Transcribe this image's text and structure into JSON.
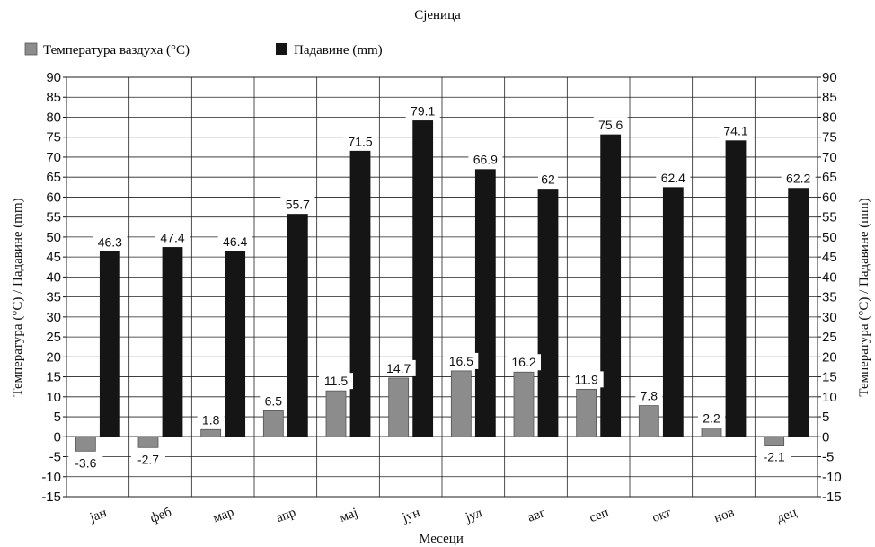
{
  "chart_data": {
    "type": "bar",
    "title": "Сјеница",
    "xlabel": "Месеци",
    "ylabel": "Температура (°C) / Падавине (mm)",
    "ylabel_right": "Температура (°C) / Падавине (mm)",
    "categories": [
      "јан",
      "феб",
      "мар",
      "апр",
      "мај",
      "јун",
      "јул",
      "авг",
      "сеп",
      "окт",
      "нов",
      "дец"
    ],
    "series": [
      {
        "name": "Температура ваздуха (°C)",
        "color": "#8c8c8c",
        "values": [
          -3.6,
          -2.7,
          1.8,
          6.5,
          11.5,
          14.7,
          16.5,
          16.2,
          11.9,
          7.8,
          2.2,
          -2.1
        ],
        "labels": [
          "-3.6",
          "-2.7",
          "1.8",
          "6.5",
          "11.5",
          "14.7",
          "16.5",
          "16.2",
          "11.9",
          "7.8",
          "2.2",
          "-2.1"
        ]
      },
      {
        "name": "Падавине (mm)",
        "color": "#151515",
        "values": [
          46.3,
          47.4,
          46.4,
          55.7,
          71.5,
          79.1,
          66.9,
          62,
          75.6,
          62.4,
          74.1,
          62.2
        ],
        "labels": [
          "46.3",
          "47.4",
          "46.4",
          "55.7",
          "71.5",
          "79.1",
          "66.9",
          "62",
          "75.6",
          "62.4",
          "74.1",
          "62.2"
        ]
      }
    ],
    "ylim": [
      -15,
      90
    ],
    "yticks": [
      "-15",
      "-10",
      "-5",
      "0",
      "5",
      "10",
      "15",
      "20",
      "25",
      "30",
      "35",
      "40",
      "45",
      "50",
      "55",
      "60",
      "65",
      "70",
      "75",
      "80",
      "85",
      "90"
    ],
    "grid": true,
    "legend_position": "top-left"
  }
}
